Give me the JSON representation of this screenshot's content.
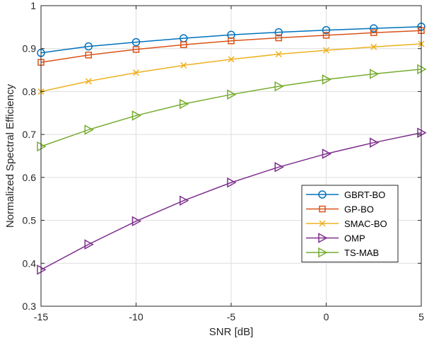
{
  "chart_data": {
    "type": "line",
    "title": "",
    "xlabel": "SNR [dB]",
    "ylabel": "Normalized Spectral Efficiency",
    "xlim": [
      -15,
      5
    ],
    "ylim": [
      0.3,
      1.0
    ],
    "xticks": [
      -15,
      -10,
      -5,
      0,
      5
    ],
    "yticks": [
      0.3,
      0.4,
      0.5,
      0.6,
      0.7,
      0.8,
      0.9,
      1.0
    ],
    "xtick_labels": [
      "-15",
      "-10",
      "-5",
      "0",
      "5"
    ],
    "ytick_labels": [
      "0.3",
      "0.4",
      "0.5",
      "0.6",
      "0.7",
      "0.8",
      "0.9",
      "1"
    ],
    "grid": true,
    "legend_position": "lower-right",
    "x": [
      -15,
      -12.5,
      -10,
      -7.5,
      -5,
      -2.5,
      0,
      2.5,
      5
    ],
    "series": [
      {
        "name": "GBRT-BO",
        "color": "#0072BD",
        "marker": "circle",
        "values": [
          0.89,
          0.905,
          0.915,
          0.924,
          0.932,
          0.938,
          0.943,
          0.947,
          0.951
        ]
      },
      {
        "name": "GP-BO",
        "color": "#D95319",
        "marker": "square",
        "values": [
          0.868,
          0.885,
          0.898,
          0.909,
          0.918,
          0.925,
          0.931,
          0.937,
          0.942
        ]
      },
      {
        "name": "SMAC-BO",
        "color": "#EDB120",
        "marker": "x",
        "values": [
          0.8,
          0.824,
          0.844,
          0.861,
          0.875,
          0.887,
          0.896,
          0.904,
          0.911
        ]
      },
      {
        "name": "OMP",
        "color": "#7E2F8E",
        "marker": "triangle-right",
        "values": [
          0.385,
          0.444,
          0.498,
          0.546,
          0.588,
          0.624,
          0.655,
          0.681,
          0.704
        ]
      },
      {
        "name": "TS-MAB",
        "color": "#77AC30",
        "marker": "triangle-right",
        "values": [
          0.672,
          0.711,
          0.744,
          0.771,
          0.793,
          0.812,
          0.828,
          0.841,
          0.852
        ]
      }
    ]
  }
}
